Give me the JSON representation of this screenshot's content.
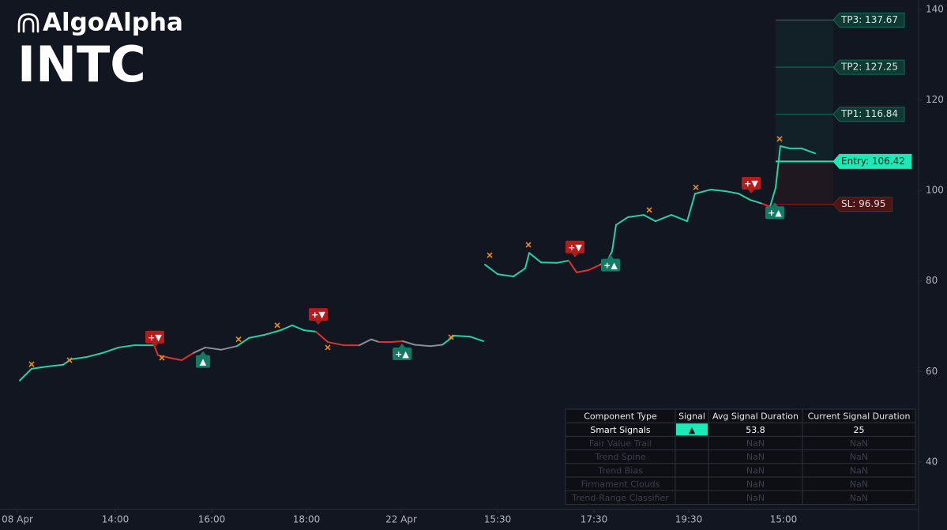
{
  "header": {
    "brand": "AlgoAlpha",
    "symbol": "INTC"
  },
  "chart_data": {
    "type": "line",
    "xlim": [
      0,
      290
    ],
    "ylim": [
      29.5,
      142.1
    ],
    "yticks": [
      40,
      60,
      80,
      100,
      120,
      140
    ],
    "xticks": [
      {
        "value": 5.5,
        "label": "08 Apr"
      },
      {
        "value": 36.5,
        "label": "14:00"
      },
      {
        "value": 67,
        "label": "16:00"
      },
      {
        "value": 97,
        "label": "18:00"
      },
      {
        "value": 127,
        "label": "22 Apr"
      },
      {
        "value": 157.5,
        "label": "15:30"
      },
      {
        "value": 188,
        "label": "17:30"
      },
      {
        "value": 218,
        "label": "19:30"
      },
      {
        "value": 248,
        "label": "15:00"
      }
    ],
    "x": [
      6.25,
      10,
      15,
      20,
      22.5,
      27.5,
      32.5,
      37.5,
      42.5,
      48.75,
      50,
      53.75,
      57.5,
      61.25,
      65,
      70,
      75,
      78.75,
      83.75,
      88.75,
      92.5,
      96.25,
      100,
      103.75,
      108.75,
      113.75,
      117.5,
      120,
      123.75,
      127.5,
      131.25,
      136.25,
      140,
      143.75,
      148.75,
      153,
      153.25,
      153.5,
      157.5,
      162.5,
      166.25,
      167.5,
      171.25,
      176.25,
      180,
      182.5,
      186.25,
      190,
      192.5,
      193.75,
      195,
      198.75,
      203.75,
      207.5,
      212.5,
      217.5,
      220,
      225,
      230,
      233.75,
      237.5,
      241.25,
      243.75,
      245.5,
      247,
      250,
      253.75,
      258
    ],
    "values": [
      58.0,
      60.6,
      61.1,
      61.5,
      62.7,
      63.2,
      64.1,
      65.3,
      65.8,
      65.8,
      63.6,
      63.0,
      62.5,
      64.1,
      65.3,
      64.8,
      65.6,
      67.4,
      68.1,
      69.1,
      70.2,
      69.1,
      68.8,
      66.5,
      65.8,
      65.8,
      67.1,
      66.5,
      66.5,
      66.7,
      65.9,
      65.6,
      65.9,
      67.9,
      67.7,
      66.7,
      null,
      83.6,
      81.5,
      81.0,
      82.8,
      86.2,
      84.1,
      84.0,
      84.5,
      81.9,
      82.4,
      83.6,
      84.8,
      86.6,
      92.4,
      94.1,
      94.6,
      93.2,
      94.6,
      93.2,
      99.3,
      100.2,
      99.8,
      99.3,
      97.9,
      97.1,
      96.4,
      100.6,
      109.8,
      109.3,
      109.3,
      108.2
    ],
    "colors": [
      "#22d3a6",
      "#22d3a6",
      "#22d3a6",
      "#22d3a6",
      "#22d3a6",
      "#22d3a6",
      "#22d3a6",
      "#22d3a6",
      "#22d3a6",
      "#22d3a6",
      "#e0312b",
      "#e0312b",
      "#e0312b",
      "#e0312b",
      "#8a8d96",
      "#8a8d96",
      "#8a8d96",
      "#22d3a6",
      "#22d3a6",
      "#22d3a6",
      "#22d3a6",
      "#22d3a6",
      "#22d3a6",
      "#e0312b",
      "#e0312b",
      "#e0312b",
      "#8a8d96",
      "#8a8d96",
      "#e0312b",
      "#e0312b",
      "#8a8d96",
      "#8a8d96",
      "#8a8d96",
      "#22d3a6",
      "#22d3a6",
      "#22d3a6",
      null,
      "#22d3a6",
      "#22d3a6",
      "#22d3a6",
      "#22d3a6",
      "#22d3a6",
      "#22d3a6",
      "#22d3a6",
      "#22d3a6",
      "#e0312b",
      "#e0312b",
      "#e0312b",
      "#8a8d96",
      "#22d3a6",
      "#22d3a6",
      "#22d3a6",
      "#22d3a6",
      "#22d3a6",
      "#22d3a6",
      "#22d3a6",
      "#22d3a6",
      "#22d3a6",
      "#22d3a6",
      "#22d3a6",
      "#22d3a6",
      "#22d3a6",
      "#e0312b",
      "#22d3a6",
      "#22d3a6",
      "#22d3a6",
      "#22d3a6",
      "#22d3a6"
    ],
    "signals": [
      {
        "x": 49,
        "y": 67.6,
        "label": "+▼",
        "color": "#b71c1c"
      },
      {
        "x": 64.25,
        "y": 62.2,
        "label": "▲",
        "color": "#137a63"
      },
      {
        "x": 100.75,
        "y": 72.6,
        "label": "+▼",
        "color": "#b71c1c"
      },
      {
        "x": 127.25,
        "y": 63.9,
        "label": "+▲",
        "color": "#137a63"
      },
      {
        "x": 182,
        "y": 87.5,
        "label": "+▼",
        "color": "#b71c1c"
      },
      {
        "x": 193.25,
        "y": 83.5,
        "label": "+▲",
        "color": "#137a63"
      },
      {
        "x": 237.75,
        "y": 101.6,
        "label": "+▼",
        "color": "#b71c1c"
      },
      {
        "x": 245.25,
        "y": 95.1,
        "label": "+▲",
        "color": "#137a63"
      }
    ],
    "x_marks": {
      "color": "#f08c1a",
      "x": [
        10,
        22,
        51.25,
        75.5,
        87.75,
        103.75,
        142.75,
        155,
        167.25,
        205.5,
        220.25,
        246.75
      ],
      "values": [
        61.6,
        62.5,
        63.0,
        67.1,
        70.2,
        65.3,
        67.6,
        85.7,
        88.0,
        95.7,
        100.7,
        111.4
      ]
    },
    "levels": [
      {
        "value": 137.67,
        "label": "TP3: 137.67",
        "kind": "tp"
      },
      {
        "value": 127.25,
        "label": "TP2: 127.25",
        "kind": "tp"
      },
      {
        "value": 116.84,
        "label": "TP1: 116.84",
        "kind": "tp"
      },
      {
        "value": 106.42,
        "label": "Entry: 106.42",
        "kind": "entry"
      },
      {
        "value": 96.95,
        "label": "SL: 96.95",
        "kind": "sl"
      }
    ]
  },
  "table": {
    "header": [
      "Component Type",
      "Signal",
      "Avg Signal Duration",
      "Current Signal Duration"
    ],
    "rows": [
      [
        "Smart Signals",
        "▲",
        53.8,
        25
      ],
      [
        "Fair Value Trail",
        null,
        "NaN",
        "NaN"
      ],
      [
        "Trend Spine",
        null,
        "NaN",
        "NaN"
      ],
      [
        "Trend Bias",
        null,
        "NaN",
        "NaN"
      ],
      [
        "Firmament Clouds",
        null,
        "NaN",
        "NaN"
      ],
      [
        "Trend-Range Classifier",
        null,
        "NaN",
        "NaN"
      ]
    ]
  }
}
